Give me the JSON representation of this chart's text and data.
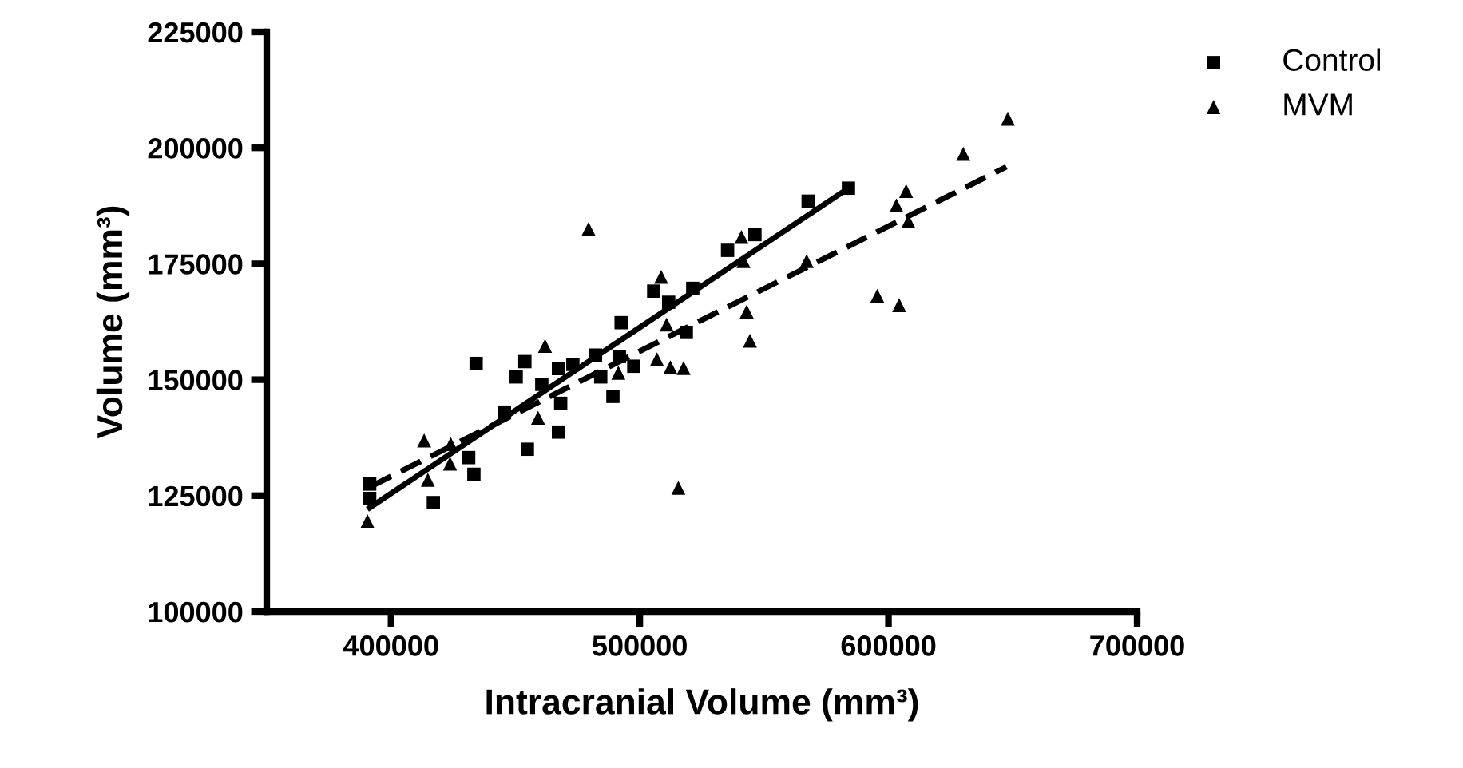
{
  "chart_data": {
    "type": "scatter",
    "xlabel": "Intracranial Volume (mm³)",
    "ylabel": "Volume (mm³)",
    "xlim": [
      350000,
      700000
    ],
    "xticks": [
      400000,
      500000,
      600000,
      700000
    ],
    "ylim": [
      100000,
      225000
    ],
    "yticks": [
      100000,
      125000,
      150000,
      175000,
      200000,
      225000
    ],
    "grid": false,
    "legend": "top right",
    "series": [
      {
        "name": "Control",
        "color": "#000000",
        "marker": "square",
        "x": [
          391400,
          391400,
          417000,
          431200,
          433300,
          434200,
          445600,
          454800,
          450300,
          453800,
          460600,
          467300,
          467300,
          468200,
          473100,
          482200,
          484300,
          489200,
          491800,
          492500,
          497600,
          505600,
          511600,
          518700,
          521300,
          535300,
          546300,
          567700,
          583900
        ],
        "values": [
          127500,
          124400,
          123500,
          133200,
          129600,
          153500,
          143000,
          135000,
          150600,
          153900,
          149000,
          138700,
          152400,
          144900,
          153300,
          155300,
          150600,
          146400,
          155000,
          162300,
          152900,
          169100,
          166700,
          160200,
          169700,
          177900,
          181300,
          188500,
          191300
        ]
      },
      {
        "name": "MVM",
        "color": "#000000",
        "marker": "triangle",
        "x": [
          390500,
          413300,
          414800,
          424000,
          423700,
          459100,
          461900,
          479400,
          491400,
          506900,
          508600,
          510800,
          512300,
          517600,
          515500,
          540900,
          541700,
          543000,
          544300,
          567100,
          595500,
          604300,
          603200,
          607100,
          608000,
          630100,
          648000
        ],
        "values": [
          119500,
          136900,
          128400,
          136100,
          131900,
          141800,
          157300,
          182500,
          151500,
          154400,
          172200,
          161900,
          152700,
          152500,
          126700,
          180800,
          175600,
          164700,
          158400,
          175600,
          168100,
          166100,
          187600,
          190700,
          184200,
          198700,
          206300
        ]
      },
      {
        "type": "line",
        "color": "#000000",
        "line_style": "solid",
        "marker": "none",
        "x": [
          391400,
          583900
        ],
        "values": [
          122400,
          191300
        ]
      },
      {
        "type": "line",
        "color": "#000000",
        "line_style": "dashed",
        "marker": "none",
        "x": [
          392000,
          647400
        ],
        "values": [
          127000,
          195900
        ]
      }
    ]
  }
}
